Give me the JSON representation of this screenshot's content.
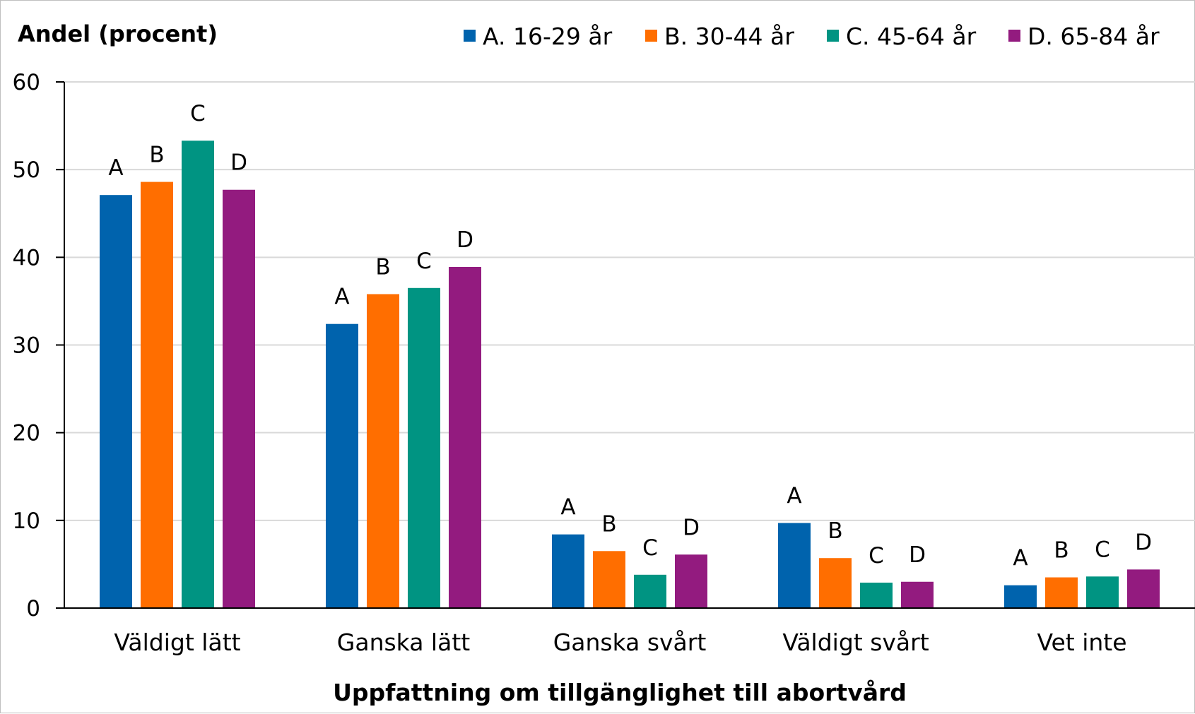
{
  "chart_data": {
    "type": "bar",
    "ylabel": "Andel (procent)",
    "xlabel": "Uppfattning om tillgänglighet till abortvård",
    "ylim": [
      0,
      60
    ],
    "yticks": [
      "0",
      "10",
      "20",
      "30",
      "40",
      "50",
      "60"
    ],
    "grid": true,
    "legend_position": "top",
    "categories": [
      "Väldigt lätt",
      "Ganska lätt",
      "Ganska svårt",
      "Väldigt svårt",
      "Vet inte"
    ],
    "series": [
      {
        "name": "A. 16-29 år",
        "short": "A",
        "color": "#0063AD",
        "values": [
          47.1,
          32.4,
          8.4,
          9.7,
          2.6
        ]
      },
      {
        "name": "B. 30-44 år",
        "short": "B",
        "color": "#FF6E00",
        "values": [
          48.6,
          35.8,
          6.5,
          5.7,
          3.5
        ]
      },
      {
        "name": "C. 45-64 år",
        "short": "C",
        "color": "#009482",
        "values": [
          53.3,
          36.5,
          3.8,
          2.9,
          3.6
        ]
      },
      {
        "name": "D. 65-84 år",
        "short": "D",
        "color": "#931B7F",
        "values": [
          47.7,
          38.9,
          6.1,
          3.0,
          4.4
        ]
      }
    ]
  }
}
